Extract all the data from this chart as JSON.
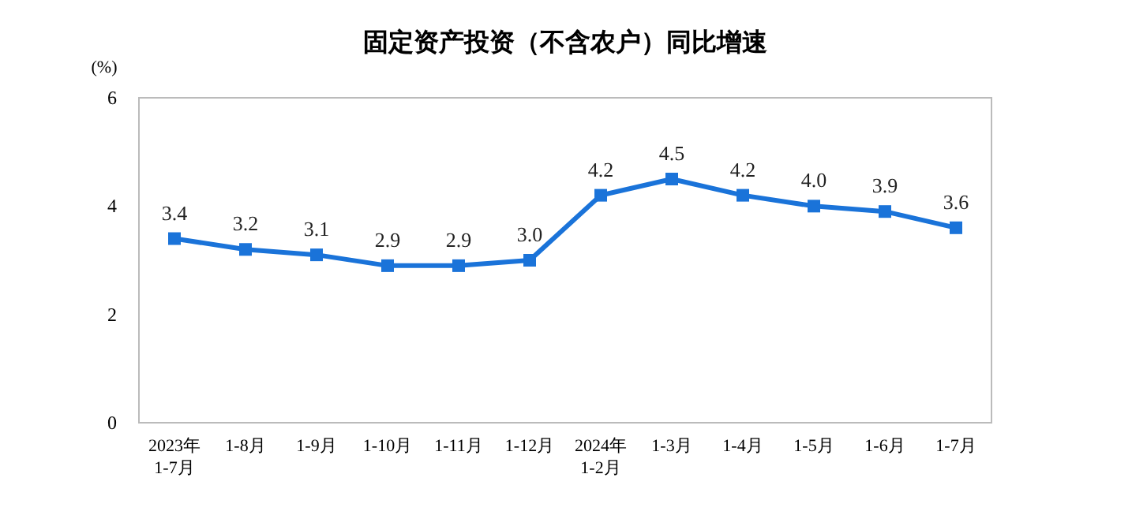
{
  "chart_data": {
    "type": "line",
    "title": "固定资产投资（不含农户）同比增速",
    "ylabel": "(%)",
    "categories": [
      "2023年\n1-7月",
      "1-8月",
      "1-9月",
      "1-10月",
      "1-11月",
      "1-12月",
      "2024年\n1-2月",
      "1-3月",
      "1-4月",
      "1-5月",
      "1-6月",
      "1-7月"
    ],
    "series": [
      {
        "color": "#1a73d9",
        "values": [
          3.4,
          3.2,
          3.1,
          2.9,
          2.9,
          3.0,
          4.2,
          4.5,
          4.2,
          4.0,
          3.9,
          3.6
        ],
        "value_labels": [
          "3.4",
          "3.2",
          "3.1",
          "2.9",
          "2.9",
          "3.0",
          "4.2",
          "4.5",
          "4.2",
          "4.0",
          "3.9",
          "3.6"
        ]
      }
    ],
    "ylim": [
      0,
      6
    ],
    "yticks": [
      0,
      2,
      4,
      6
    ],
    "marker": "square",
    "line_style": "solid",
    "grid": false
  }
}
